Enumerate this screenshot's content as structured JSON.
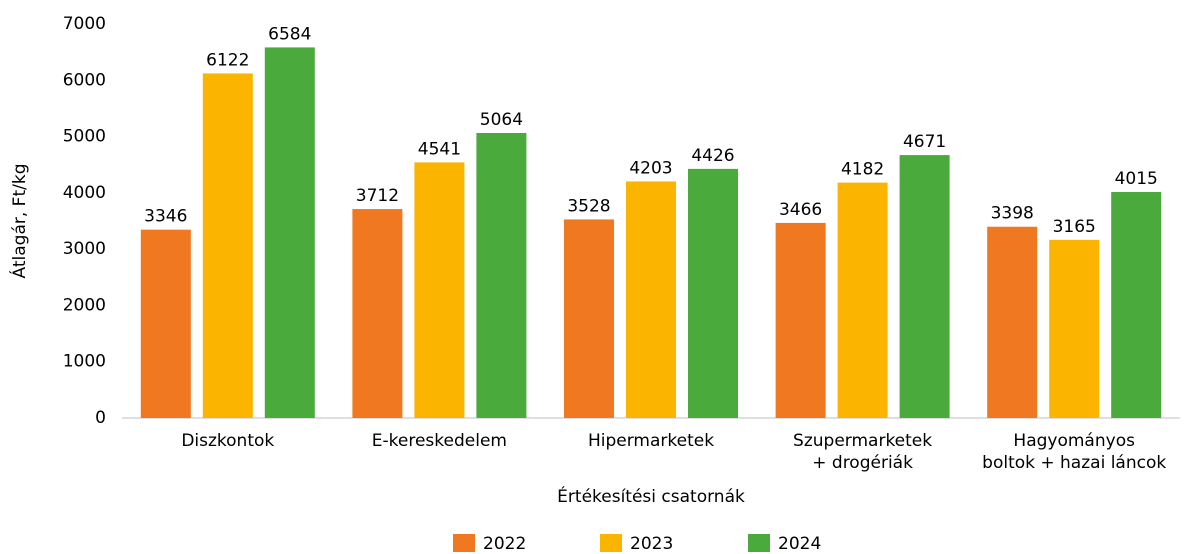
{
  "chart_data": {
    "type": "bar",
    "x_label": "Értékesítési csatornák",
    "y_label": "Átlagár, Ft/kg",
    "categories": [
      "Diszkontok",
      "E-kereskedelem",
      "Hipermarketek",
      "Szupermarketek\n+ drogériák",
      "Hagyományos\nboltok + hazai láncok"
    ],
    "series": [
      {
        "name": "2022",
        "color": "#f07820",
        "values": [
          3346,
          3712,
          3528,
          3466,
          3398
        ]
      },
      {
        "name": "2023",
        "color": "#fbb400",
        "values": [
          6122,
          4541,
          4203,
          4182,
          3165
        ]
      },
      {
        "name": "2024",
        "color": "#4aab3c",
        "values": [
          6584,
          5064,
          4426,
          4671,
          4015
        ]
      }
    ],
    "ylim": [
      0,
      7000
    ],
    "yticks": [
      0,
      1000,
      2000,
      3000,
      4000,
      5000,
      6000,
      7000
    ],
    "grid": false,
    "legend": "bottom"
  }
}
